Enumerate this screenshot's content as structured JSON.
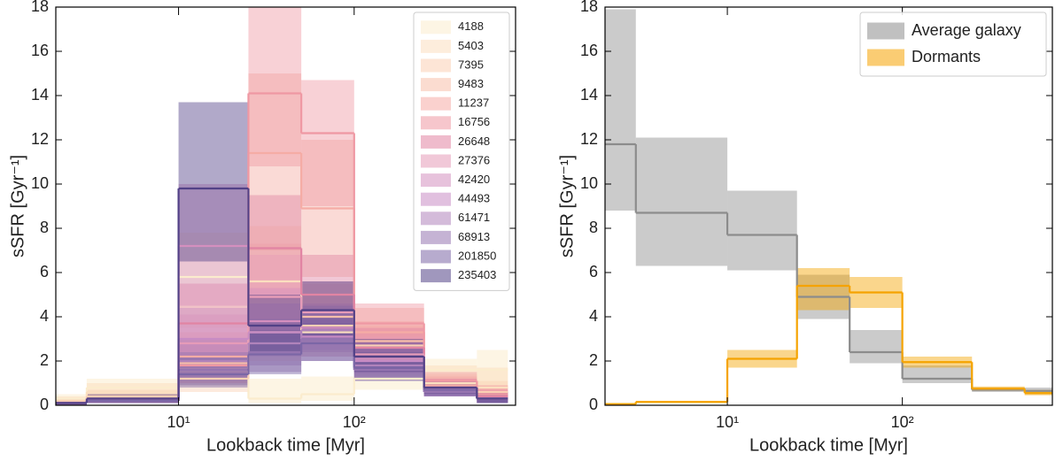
{
  "chart_data": [
    {
      "type": "step",
      "xlabel": "Lookback time [Myr]",
      "ylabel": "sSFR [Gyr⁻¹]",
      "log_x": true,
      "legend": "upper right",
      "bin_edges": [
        2,
        3,
        10,
        25,
        50,
        100,
        250,
        500,
        750
      ],
      "xlim": [
        2,
        830
      ],
      "ylim": [
        0,
        18
      ],
      "xticks": [
        {
          "value": 10,
          "label": "10¹"
        },
        {
          "value": 100,
          "label": "10²"
        }
      ],
      "yticks": [
        0,
        2,
        4,
        6,
        8,
        10,
        12,
        14,
        16,
        18
      ],
      "series": [
        {
          "name": "4188",
          "color": "#fbeccd",
          "values": [
            0.3,
            0.8,
            5.8,
            0.3,
            0.5,
            1.2,
            1.6,
            1.6
          ],
          "lo": [
            0.1,
            0.4,
            3.5,
            0.1,
            0.2,
            0.7,
            1.0,
            0.8
          ],
          "hi": [
            0.5,
            1.2,
            7.8,
            1.2,
            1.3,
            2.0,
            2.1,
            2.5
          ]
        },
        {
          "name": "5403",
          "color": "#fbdfc0",
          "values": [
            0.2,
            0.6,
            1.6,
            5.6,
            3.3,
            2.1,
            1.0,
            0.8
          ],
          "lo": [
            0.1,
            0.3,
            0.9,
            3.2,
            2.2,
            1.2,
            0.6,
            0.4
          ],
          "hi": [
            0.4,
            1.0,
            2.7,
            8.1,
            4.6,
            3.1,
            1.8,
            1.7
          ]
        },
        {
          "name": "7395",
          "color": "#fbd0b4",
          "values": [
            0.2,
            0.4,
            1.2,
            3.3,
            3.6,
            2.7,
            0.9,
            0.6
          ],
          "lo": [
            0.1,
            0.2,
            0.6,
            2.0,
            2.4,
            1.8,
            0.5,
            0.3
          ],
          "hi": [
            0.3,
            0.7,
            2.2,
            5.0,
            5.0,
            3.6,
            1.4,
            1.1
          ]
        },
        {
          "name": "9483",
          "color": "#f8bfaa",
          "values": [
            0.1,
            0.3,
            1.9,
            4.9,
            4.0,
            2.9,
            0.8,
            0.5
          ],
          "lo": [
            0.0,
            0.1,
            1.0,
            3.0,
            2.8,
            2.0,
            0.5,
            0.3
          ],
          "hi": [
            0.2,
            0.5,
            3.0,
            7.3,
            5.5,
            3.8,
            1.2,
            0.9
          ]
        },
        {
          "name": "11237",
          "color": "#f5aca5",
          "values": [
            0.1,
            0.2,
            2.2,
            11.4,
            8.9,
            3.3,
            0.9,
            0.4
          ],
          "lo": [
            0.0,
            0.1,
            1.2,
            7.0,
            5.8,
            2.2,
            0.5,
            0.2
          ],
          "hi": [
            0.2,
            0.4,
            3.3,
            15.0,
            12.0,
            4.4,
            1.3,
            0.8
          ]
        },
        {
          "name": "16756",
          "color": "#ef98a3",
          "values": [
            0.1,
            0.2,
            1.8,
            14.1,
            12.3,
            3.7,
            1.1,
            0.5
          ],
          "lo": [
            0.0,
            0.1,
            1.0,
            10.8,
            9.0,
            2.6,
            0.7,
            0.2
          ],
          "hi": [
            0.2,
            0.3,
            2.8,
            18.0,
            14.7,
            4.6,
            1.5,
            0.9
          ]
        },
        {
          "name": "26648",
          "color": "#e184a3",
          "values": [
            0.1,
            0.2,
            3.7,
            7.1,
            5.0,
            2.6,
            0.8,
            0.4
          ],
          "lo": [
            0.0,
            0.1,
            2.0,
            4.8,
            3.5,
            1.8,
            0.5,
            0.2
          ],
          "hi": [
            0.2,
            0.3,
            5.5,
            9.5,
            6.8,
            3.5,
            1.2,
            0.7
          ]
        },
        {
          "name": "27376",
          "color": "#e69bb8",
          "values": [
            0.1,
            0.2,
            2.8,
            4.9,
            4.2,
            2.3,
            0.8,
            0.3
          ],
          "lo": [
            0.0,
            0.1,
            1.5,
            3.3,
            3.0,
            1.5,
            0.5,
            0.1
          ],
          "hi": [
            0.2,
            0.3,
            4.1,
            6.8,
            5.6,
            3.1,
            1.1,
            0.6
          ]
        },
        {
          "name": "42420",
          "color": "#d48fbf",
          "values": [
            0.1,
            0.2,
            7.2,
            3.8,
            3.5,
            2.1,
            0.7,
            0.3
          ],
          "lo": [
            0.0,
            0.1,
            4.5,
            2.5,
            2.5,
            1.4,
            0.4,
            0.1
          ],
          "hi": [
            0.2,
            0.3,
            10.0,
            5.3,
            4.6,
            2.9,
            1.0,
            0.6
          ]
        },
        {
          "name": "44493",
          "color": "#c88cc4",
          "values": [
            0.1,
            0.2,
            3.0,
            3.3,
            3.1,
            2.0,
            0.7,
            0.3
          ],
          "lo": [
            0.0,
            0.1,
            1.7,
            2.2,
            2.2,
            1.3,
            0.4,
            0.1
          ],
          "hi": [
            0.2,
            0.3,
            4.4,
            4.6,
            4.2,
            2.8,
            1.0,
            0.5
          ]
        },
        {
          "name": "61471",
          "color": "#b083bb",
          "values": [
            0.1,
            0.2,
            2.0,
            2.8,
            3.4,
            1.8,
            0.6,
            0.3
          ],
          "lo": [
            0.0,
            0.1,
            1.1,
            1.8,
            2.4,
            1.2,
            0.4,
            0.1
          ],
          "hi": [
            0.2,
            0.3,
            3.0,
            3.9,
            4.5,
            2.6,
            0.9,
            0.5
          ]
        },
        {
          "name": "68913",
          "color": "#9574b0",
          "values": [
            0.1,
            0.2,
            1.6,
            2.4,
            3.0,
            1.6,
            0.6,
            0.3
          ],
          "lo": [
            0.0,
            0.1,
            0.9,
            1.5,
            2.0,
            1.1,
            0.4,
            0.1
          ],
          "hi": [
            0.2,
            0.3,
            2.4,
            3.4,
            4.0,
            2.3,
            0.9,
            0.5
          ]
        },
        {
          "name": "201850",
          "color": "#7b66a6",
          "values": [
            0.1,
            0.2,
            1.4,
            2.3,
            2.8,
            1.7,
            0.7,
            0.3
          ],
          "lo": [
            0.0,
            0.1,
            0.8,
            1.4,
            2.0,
            1.1,
            0.4,
            0.1
          ],
          "hi": [
            0.2,
            0.3,
            2.2,
            3.3,
            3.7,
            2.4,
            1.0,
            0.5
          ]
        },
        {
          "name": "235403",
          "color": "#524187",
          "values": [
            0.1,
            0.3,
            9.8,
            3.6,
            4.3,
            2.2,
            0.8,
            0.3
          ],
          "lo": [
            0.0,
            0.1,
            6.5,
            2.4,
            3.0,
            1.5,
            0.5,
            0.1
          ],
          "hi": [
            0.2,
            0.5,
            13.7,
            5.0,
            5.6,
            3.0,
            1.1,
            0.6
          ]
        }
      ]
    },
    {
      "type": "step",
      "xlabel": "Lookback time [Myr]",
      "ylabel": "sSFR [Gyr⁻¹]",
      "log_x": true,
      "legend": "upper right",
      "bin_edges": [
        2,
        3,
        10,
        25,
        50,
        100,
        250,
        500,
        750
      ],
      "xlim": [
        2,
        720
      ],
      "ylim": [
        0,
        18
      ],
      "xticks": [
        {
          "value": 10,
          "label": "10¹"
        },
        {
          "value": 100,
          "label": "10²"
        }
      ],
      "yticks": [
        0,
        2,
        4,
        6,
        8,
        10,
        12,
        14,
        16,
        18
      ],
      "series": [
        {
          "name": "Average galaxy",
          "color": "#8c8c8c",
          "values": [
            11.8,
            8.7,
            7.7,
            4.9,
            2.4,
            1.2,
            0.7,
            0.65
          ],
          "lo": [
            8.8,
            6.3,
            6.1,
            3.9,
            1.9,
            1.0,
            0.6,
            0.5
          ],
          "hi": [
            17.9,
            12.1,
            9.7,
            5.9,
            3.4,
            1.8,
            0.8,
            0.8
          ]
        },
        {
          "name": "Dormants",
          "color": "#f5a300",
          "values": [
            0.05,
            0.15,
            2.1,
            5.4,
            5.1,
            1.95,
            0.75,
            0.55
          ],
          "lo": [
            0.0,
            0.1,
            1.7,
            4.3,
            4.4,
            1.7,
            0.65,
            0.45
          ],
          "hi": [
            0.1,
            0.2,
            2.5,
            6.2,
            5.8,
            2.2,
            0.85,
            0.7
          ]
        }
      ]
    }
  ]
}
